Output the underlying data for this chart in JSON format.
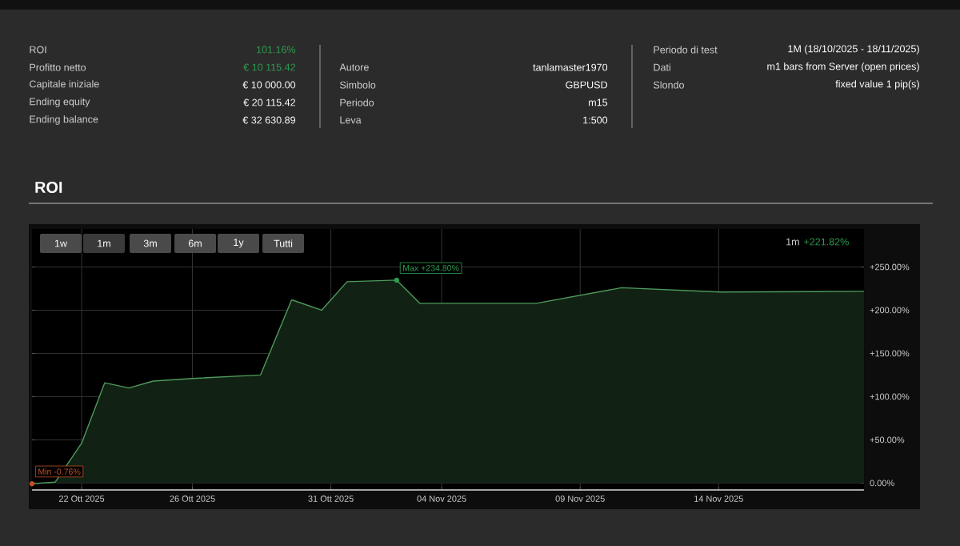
{
  "chart_data": {
    "type": "area",
    "title": "ROI",
    "annotations": [
      "ROI",
      "Profitto netto",
      "Capitale iniziale",
      "Ending equity",
      "Ending balance",
      "101.16%",
      "€ 10 115.42",
      "€ 10 000.00",
      "€ 20 115.42",
      "€ 32 630.89",
      "Autore",
      "Simbolo",
      "Periodo",
      "Leva",
      "tanlamaster1970",
      "GBPUSD",
      "m15",
      "1:500",
      "Periodo di test",
      "Dati",
      "Slondo",
      "1M (18/10/2025 - 18/11/2025)",
      "m1 bars from Server (open prices)",
      "fixed value 1 pip(s)",
      "1w",
      "1m",
      "3m",
      "6m",
      "1y",
      "Tutti",
      "1m",
      "+221.82%",
      {
        "text": "Max +234.80%",
        "x": "2025-11-02T09:00",
        "y": 234.8
      },
      {
        "text": "Min -0.76%",
        "x": "2025-10-20T05:00",
        "y": -0.76
      }
    ],
    "x": [
      "2025-10-20T05:00",
      "2025-10-21T01:00",
      "2025-10-22T00:00",
      "2025-10-22T20:00",
      "2025-10-23T17:00",
      "2025-10-24T14:00",
      "2025-10-26T00:00",
      "2025-10-28T11:00",
      "2025-10-29T14:00",
      "2025-10-30T16:00",
      "2025-10-31T14:00",
      "2025-11-02T09:00",
      "2025-11-03T05:00",
      "2025-11-07T10:00",
      "2025-11-10T12:00",
      "2025-11-14T01:00",
      "2025-11-19T06:00"
    ],
    "series": [
      {
        "color": "#4e9a5a",
        "values": [
          -0.76,
          1,
          46,
          116,
          110,
          118,
          121,
          125,
          212,
          200,
          233,
          234.8,
          208,
          208,
          226,
          221,
          221.82
        ]
      }
    ],
    "xlim": [
      "2025-10-20T05:00",
      "2025-11-19T06:00"
    ],
    "xticks": [
      {
        "value": "2025-10-22",
        "label": "22 Ott 2025"
      },
      {
        "value": "2025-10-26",
        "label": "26 Ott 2025"
      },
      {
        "value": "2025-10-31",
        "label": "31 Ott 2025"
      },
      {
        "value": "2025-11-04",
        "label": "04 Nov 2025"
      },
      {
        "value": "2025-11-09",
        "label": "09 Nov 2025"
      },
      {
        "value": "2025-11-14",
        "label": "14 Nov 2025"
      }
    ],
    "ylim": [
      -8,
      294
    ],
    "yticks": [
      {
        "value": 0,
        "label": "0.00%"
      },
      {
        "value": 50,
        "label": "+50.00%"
      },
      {
        "value": 100,
        "label": "+100.00%"
      },
      {
        "value": 150,
        "label": "+150.00%"
      },
      {
        "value": 200,
        "label": "+200.00%"
      },
      {
        "value": 250,
        "label": "+250.00%"
      }
    ],
    "grid": true,
    "marker": "none",
    "line_style": "solid"
  }
}
